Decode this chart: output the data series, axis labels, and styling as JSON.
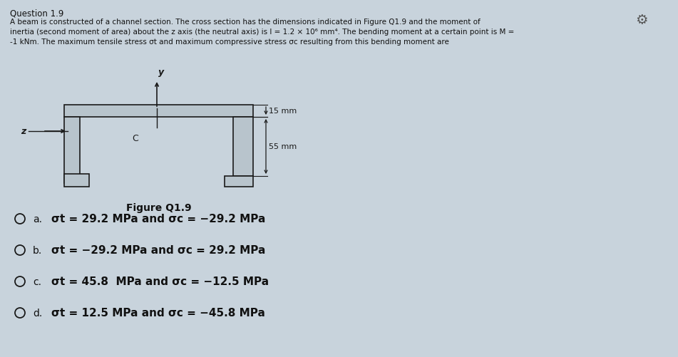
{
  "bg_color": "#c8d3dc",
  "title": "Question 1.9",
  "q_line1": "A beam is constructed of a channel section. The cross section has the dimensions indicated in Figure Q1.9 and the moment of",
  "q_line2": "inertia (second moment of area) about the z axis (the neutral axis) is I = 1.2 × 10⁶ mm⁴. The bending moment at a certain point is M =",
  "q_line3": "-1 kNm. The maximum tensile stress σt and maximum compressive stress σc resulting from this bending moment are",
  "figure_label": "Figure Q1.9",
  "dim_15": "15 mm",
  "dim_55": "55 mm",
  "label_z": "z",
  "label_y": "y",
  "label_C": "C",
  "opt_letters": [
    "a.",
    "b.",
    "c.",
    "d."
  ],
  "opt_texts": [
    "σt = 29.2 MPa and σc = −29.2 MPa",
    "σt = −29.2 MPa and σc = 29.2 MPa",
    "σt = 45.8  MPa and σc = −12.5 MPa",
    "σt = 12.5 MPa and σc = −45.8 MPa"
  ],
  "text_color": "#111111",
  "channel_fill": "#b8c4cc",
  "line_color": "#1a1a1a",
  "gear_color": "#555555"
}
